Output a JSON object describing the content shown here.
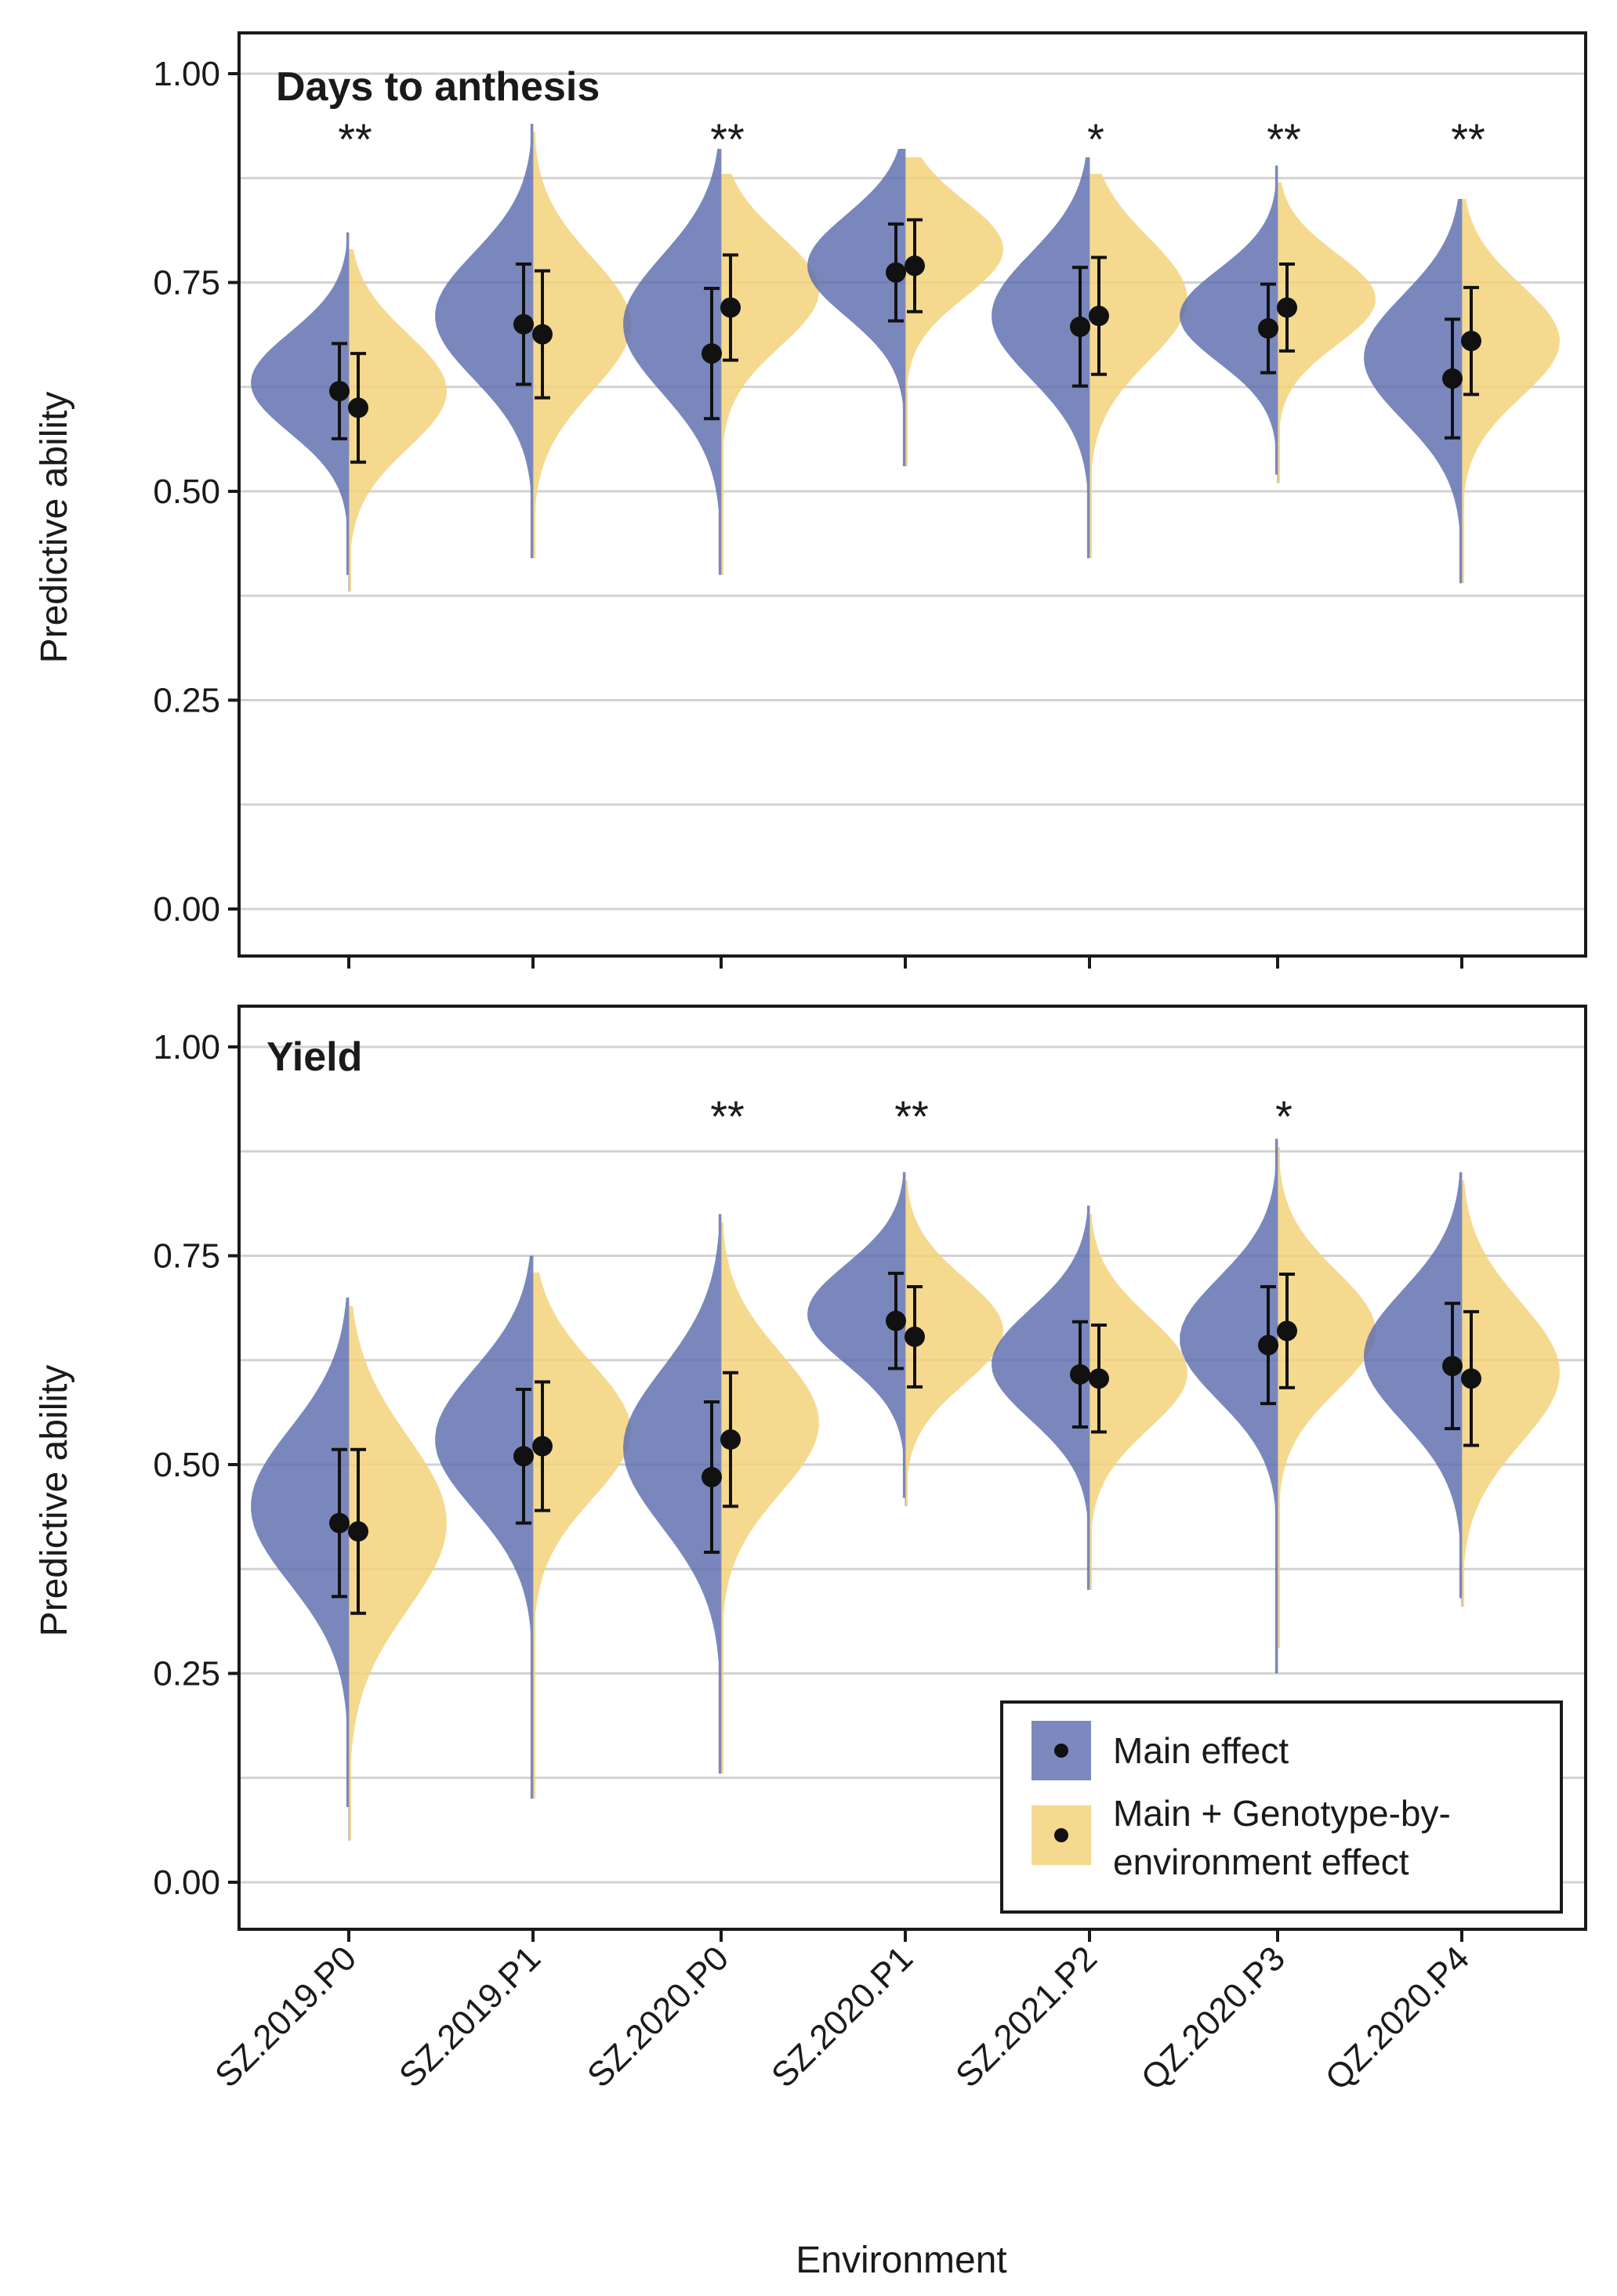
{
  "chart_data": [
    {
      "type": "split-violin",
      "title": "Days to anthesis",
      "xlabel": "",
      "ylabel": "Predictive ability",
      "ylim": [
        0,
        1
      ],
      "yticks": [
        "0.00",
        "0.25",
        "0.50",
        "0.75",
        "1.00"
      ],
      "categories": [
        "SZ.2019.P0",
        "SZ.2019.P1",
        "SZ.2020.P0",
        "SZ.2020.P1",
        "SZ.2021.P2",
        "QZ.2020.P3",
        "QZ.2020.P4"
      ],
      "significance": [
        "**",
        "",
        "**",
        "",
        "*",
        "**",
        "**"
      ],
      "series": [
        {
          "name": "Main effect",
          "color": "#5b6cae",
          "means": [
            0.62,
            0.7,
            0.665,
            0.762,
            0.697,
            0.695,
            0.635
          ],
          "sd": [
            0.057,
            0.072,
            0.078,
            0.058,
            0.071,
            0.053,
            0.071
          ],
          "ranges": [
            [
              0.4,
              0.81
            ],
            [
              0.42,
              0.94
            ],
            [
              0.4,
              0.91
            ],
            [
              0.53,
              0.91
            ],
            [
              0.42,
              0.9
            ],
            [
              0.52,
              0.89
            ],
            [
              0.39,
              0.85
            ]
          ],
          "modes": [
            0.63,
            0.71,
            0.7,
            0.77,
            0.71,
            0.71,
            0.66
          ]
        },
        {
          "name": "Main + Genotype-by-environment effect",
          "color": "#f3d27a",
          "means": [
            0.6,
            0.688,
            0.72,
            0.77,
            0.71,
            0.72,
            0.68
          ],
          "sd": [
            0.065,
            0.076,
            0.063,
            0.055,
            0.07,
            0.052,
            0.064
          ],
          "ranges": [
            [
              0.38,
              0.79
            ],
            [
              0.42,
              0.93
            ],
            [
              0.4,
              0.88
            ],
            [
              0.53,
              0.9
            ],
            [
              0.42,
              0.88
            ],
            [
              0.51,
              0.87
            ],
            [
              0.39,
              0.85
            ]
          ],
          "modes": [
            0.62,
            0.7,
            0.74,
            0.79,
            0.73,
            0.73,
            0.68
          ]
        }
      ]
    },
    {
      "type": "split-violin",
      "title": "Yield",
      "xlabel": "Environment",
      "ylabel": "Predictive ability",
      "ylim": [
        0,
        1
      ],
      "yticks": [
        "0.00",
        "0.25",
        "0.50",
        "0.75",
        "1.00"
      ],
      "categories": [
        "SZ.2019.P0",
        "SZ.2019.P1",
        "SZ.2020.P0",
        "SZ.2020.P1",
        "SZ.2021.P2",
        "QZ.2020.P3",
        "QZ.2020.P4"
      ],
      "significance": [
        "",
        "",
        "**",
        "**",
        "",
        "*",
        ""
      ],
      "series": [
        {
          "name": "Main effect",
          "color": "#5b6cae",
          "means": [
            0.43,
            0.51,
            0.485,
            0.672,
            0.608,
            0.643,
            0.618
          ],
          "sd": [
            0.088,
            0.08,
            0.09,
            0.057,
            0.063,
            0.07,
            0.075
          ],
          "ranges": [
            [
              0.09,
              0.7
            ],
            [
              0.1,
              0.75
            ],
            [
              0.13,
              0.8
            ],
            [
              0.46,
              0.85
            ],
            [
              0.35,
              0.81
            ],
            [
              0.25,
              0.89
            ],
            [
              0.34,
              0.85
            ]
          ],
          "modes": [
            0.45,
            0.53,
            0.52,
            0.68,
            0.62,
            0.65,
            0.63
          ]
        },
        {
          "name": "Main + Genotype-by-environment effect",
          "color": "#f3d27a",
          "means": [
            0.42,
            0.522,
            0.53,
            0.653,
            0.603,
            0.66,
            0.603
          ],
          "sd": [
            0.098,
            0.077,
            0.08,
            0.06,
            0.064,
            0.068,
            0.08
          ],
          "ranges": [
            [
              0.05,
              0.69
            ],
            [
              0.1,
              0.73
            ],
            [
              0.13,
              0.79
            ],
            [
              0.45,
              0.84
            ],
            [
              0.35,
              0.8
            ],
            [
              0.28,
              0.88
            ],
            [
              0.33,
              0.84
            ]
          ],
          "modes": [
            0.43,
            0.54,
            0.55,
            0.66,
            0.61,
            0.66,
            0.61
          ]
        }
      ]
    }
  ],
  "legend": {
    "items": [
      {
        "label": "Main effect",
        "color": "#5b6cae"
      },
      {
        "label_line1": "Main + Genotype-by-",
        "label_line2": "environment effect",
        "color": "#f3d27a"
      }
    ]
  }
}
